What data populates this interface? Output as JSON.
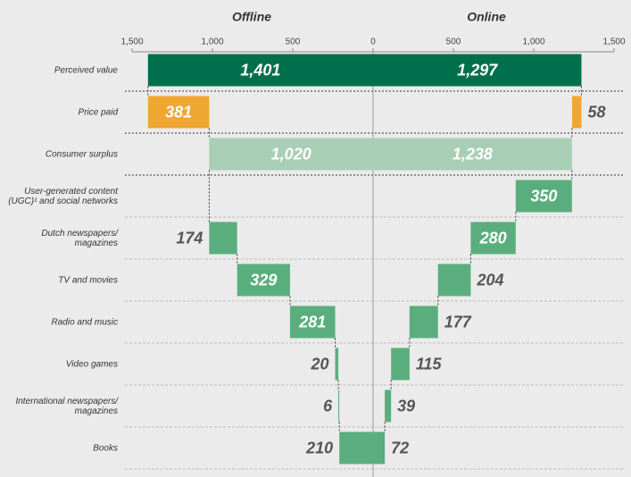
{
  "chart_data": {
    "type": "waterfall",
    "categories": [
      "Perceived value",
      "Price paid",
      "Consumer surplus",
      "User-generated content (UGC)¹ and social networks",
      "Dutch newspapers/ magazines",
      "TV and movies",
      "Radio and music",
      "Video games",
      "International newspapers/ magazines",
      "Books"
    ],
    "category_colors": [
      "#006f4c",
      "#f0a731",
      "#a8ceb5",
      "#5aae7d",
      "#5aae7d",
      "#5aae7d",
      "#5aae7d",
      "#5aae7d",
      "#5aae7d",
      "#5aae7d"
    ],
    "series": [
      {
        "name": "Offline",
        "xlim": [
          1500,
          0
        ],
        "xticks": [
          {
            "value": 1500,
            "label": "1,500"
          },
          {
            "value": 1000,
            "label": "1,000"
          },
          500,
          0
        ],
        "values": [
          1401,
          381,
          1020,
          null,
          174,
          329,
          281,
          20,
          6,
          210
        ],
        "value_labels": [
          "1,401",
          "381",
          "1,020",
          null,
          "174",
          "329",
          "281",
          "20",
          "6",
          "210"
        ]
      },
      {
        "name": "Online",
        "xlim": [
          0,
          1500
        ],
        "xticks": [
          500,
          {
            "value": 1000,
            "label": "1,000"
          },
          {
            "value": 1500,
            "label": "1,500"
          }
        ],
        "values": [
          1297,
          58,
          1238,
          350,
          280,
          204,
          177,
          115,
          39,
          72
        ],
        "value_labels": [
          "1,297",
          "58",
          "1,238",
          "350",
          "280",
          "204",
          "177",
          "115",
          "39",
          "72"
        ]
      }
    ]
  }
}
